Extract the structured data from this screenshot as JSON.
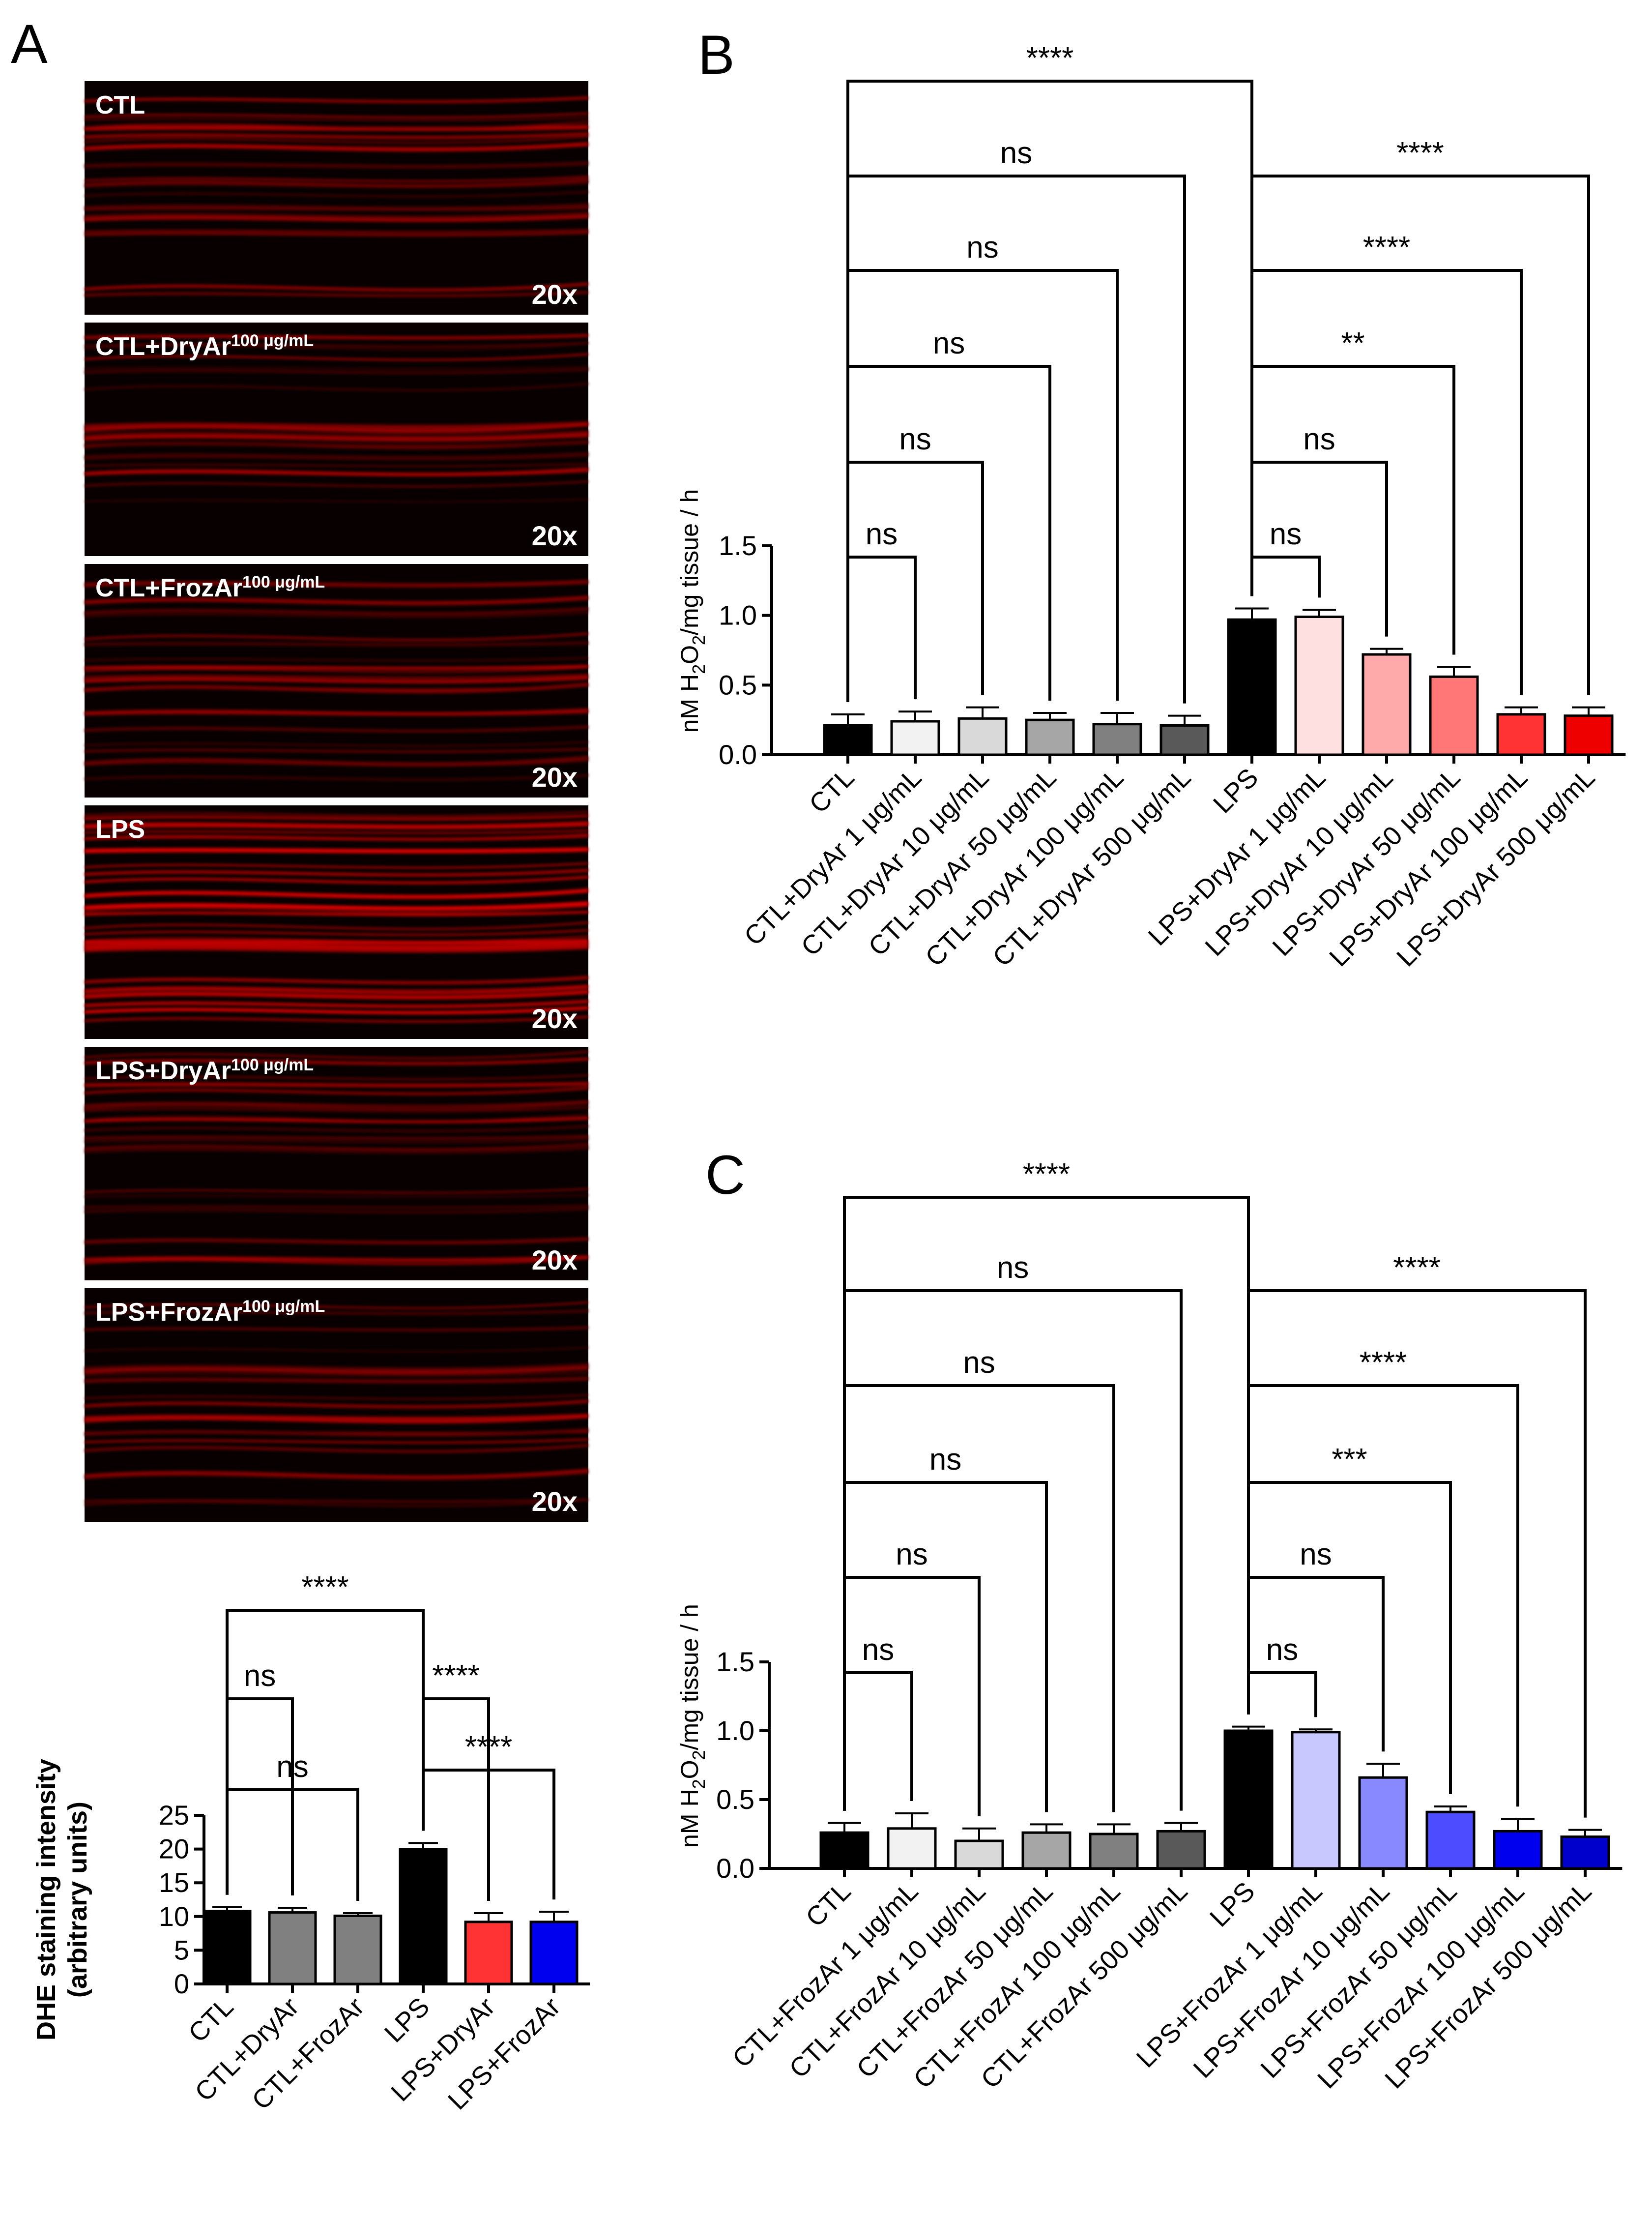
{
  "panels": {
    "A": "A",
    "B": "B",
    "C": "C"
  },
  "micrographs": [
    {
      "label": "CTL",
      "sup": "",
      "mag": "20x"
    },
    {
      "label": "CTL+DryAr",
      "sup": "100 μg/mL",
      "mag": "20x"
    },
    {
      "label": "CTL+FrozAr",
      "sup": "100 μg/mL",
      "mag": "20x"
    },
    {
      "label": "LPS",
      "sup": "",
      "mag": "20x"
    },
    {
      "label": "LPS+DryAr",
      "sup": "100 μg/mL",
      "mag": "20x"
    },
    {
      "label": "LPS+FrozAr",
      "sup": "100 μg/mL",
      "mag": "20x"
    }
  ],
  "chart_data": [
    {
      "type": "bar",
      "panel": "A",
      "ylabel_line1": "DHE staining intensity",
      "ylabel_line2": "(arbitrary units)",
      "ylim": [
        0,
        25
      ],
      "yticks": [
        0,
        5,
        10,
        15,
        20,
        25
      ],
      "categories": [
        "CTL",
        "CTL+DryAr",
        "CTL+FrozAr",
        "LPS",
        "LPS+DryAr",
        "LPS+FrozAr"
      ],
      "values": [
        10.8,
        10.6,
        10.1,
        20.0,
        9.2,
        9.2
      ],
      "errors": [
        0.6,
        0.7,
        0.4,
        0.9,
        1.3,
        1.5
      ],
      "colors": [
        "#000000",
        "#808080",
        "#808080",
        "#000000",
        "#ff3333",
        "#0000ee"
      ],
      "comparisons": [
        {
          "a": 0,
          "b": 2,
          "label": "ns"
        },
        {
          "a": 0,
          "b": 1,
          "label": "ns"
        },
        {
          "a": 0,
          "b": 3,
          "label": "****"
        },
        {
          "a": 3,
          "b": 5,
          "label": "****"
        },
        {
          "a": 3,
          "b": 4,
          "label": "****"
        }
      ]
    },
    {
      "type": "bar",
      "panel": "B",
      "ylabel_main": "nM H",
      "ylabel_sub": "2",
      "ylabel_mid": "O",
      "ylabel_sub2": "2",
      "ylabel_end": "/mg tissue / h",
      "ylim": [
        0,
        1.5
      ],
      "yticks": [
        "0.0",
        "0.5",
        "1.0",
        "1.5"
      ],
      "categories": [
        "CTL",
        "CTL+DryAr 1 μg/mL",
        "CTL+DryAr 10 μg/mL",
        "CTL+DryAr 50 μg/mL",
        "CTL+DryAr 100 μg/mL",
        "CTL+DryAr 500 μg/mL",
        "LPS",
        "LPS+DryAr 1 μg/mL",
        "LPS+DryAr 10 μg/mL",
        "LPS+DryAr 50 μg/mL",
        "LPS+DryAr 100 μg/mL",
        "LPS+DryAr 500 μg/mL"
      ],
      "values": [
        0.21,
        0.24,
        0.26,
        0.25,
        0.22,
        0.21,
        0.97,
        0.99,
        0.72,
        0.56,
        0.29,
        0.28
      ],
      "errors": [
        0.08,
        0.07,
        0.08,
        0.05,
        0.08,
        0.07,
        0.08,
        0.05,
        0.04,
        0.07,
        0.05,
        0.06
      ],
      "colors": [
        "#000000",
        "#f2f2f2",
        "#d9d9d9",
        "#a6a6a6",
        "#808080",
        "#595959",
        "#000000",
        "#ffe0e0",
        "#ffaaaa",
        "#ff7777",
        "#ff3333",
        "#ee0000"
      ],
      "comparisons": [
        {
          "a": 0,
          "b": 1,
          "label": "ns"
        },
        {
          "a": 0,
          "b": 2,
          "label": "ns"
        },
        {
          "a": 0,
          "b": 3,
          "label": "ns"
        },
        {
          "a": 0,
          "b": 4,
          "label": "ns"
        },
        {
          "a": 0,
          "b": 5,
          "label": "ns"
        },
        {
          "a": 0,
          "b": 6,
          "label": "****"
        },
        {
          "a": 6,
          "b": 7,
          "label": "ns"
        },
        {
          "a": 6,
          "b": 8,
          "label": "ns"
        },
        {
          "a": 6,
          "b": 9,
          "label": "**"
        },
        {
          "a": 6,
          "b": 10,
          "label": "****"
        },
        {
          "a": 6,
          "b": 11,
          "label": "****"
        }
      ]
    },
    {
      "type": "bar",
      "panel": "C",
      "ylabel_main": "nM H",
      "ylabel_sub": "2",
      "ylabel_mid": "O",
      "ylabel_sub2": "2",
      "ylabel_end": "/mg tissue / h",
      "ylim": [
        0,
        1.5
      ],
      "yticks": [
        "0.0",
        "0.5",
        "1.0",
        "1.5"
      ],
      "categories": [
        "CTL",
        "CTL+FrozAr 1 μg/mL",
        "CTL+FrozAr 10 μg/mL",
        "CTL+FrozAr 50 μg/mL",
        "CTL+FrozAr 100 μg/mL",
        "CTL+FrozAr 500 μg/mL",
        "LPS",
        "LPS+FrozAr 1 μg/mL",
        "LPS+FrozAr 10 μg/mL",
        "LPS+FrozAr 50 μg/mL",
        "LPS+FrozAr 100 μg/mL",
        "LPS+FrozAr 500 μg/mL"
      ],
      "values": [
        0.26,
        0.29,
        0.2,
        0.26,
        0.25,
        0.27,
        1.0,
        0.99,
        0.66,
        0.41,
        0.27,
        0.23
      ],
      "errors": [
        0.07,
        0.11,
        0.09,
        0.06,
        0.07,
        0.06,
        0.03,
        0.02,
        0.1,
        0.04,
        0.09,
        0.05
      ],
      "colors": [
        "#000000",
        "#f2f2f2",
        "#d9d9d9",
        "#a6a6a6",
        "#808080",
        "#595959",
        "#000000",
        "#c8c8ff",
        "#8888ff",
        "#4d4dff",
        "#0000ee",
        "#0000cc"
      ],
      "comparisons": [
        {
          "a": 0,
          "b": 1,
          "label": "ns"
        },
        {
          "a": 0,
          "b": 2,
          "label": "ns"
        },
        {
          "a": 0,
          "b": 3,
          "label": "ns"
        },
        {
          "a": 0,
          "b": 4,
          "label": "ns"
        },
        {
          "a": 0,
          "b": 5,
          "label": "ns"
        },
        {
          "a": 0,
          "b": 6,
          "label": "****"
        },
        {
          "a": 6,
          "b": 7,
          "label": "ns"
        },
        {
          "a": 6,
          "b": 8,
          "label": "ns"
        },
        {
          "a": 6,
          "b": 9,
          "label": "***"
        },
        {
          "a": 6,
          "b": 10,
          "label": "****"
        },
        {
          "a": 6,
          "b": 11,
          "label": "****"
        }
      ]
    }
  ]
}
